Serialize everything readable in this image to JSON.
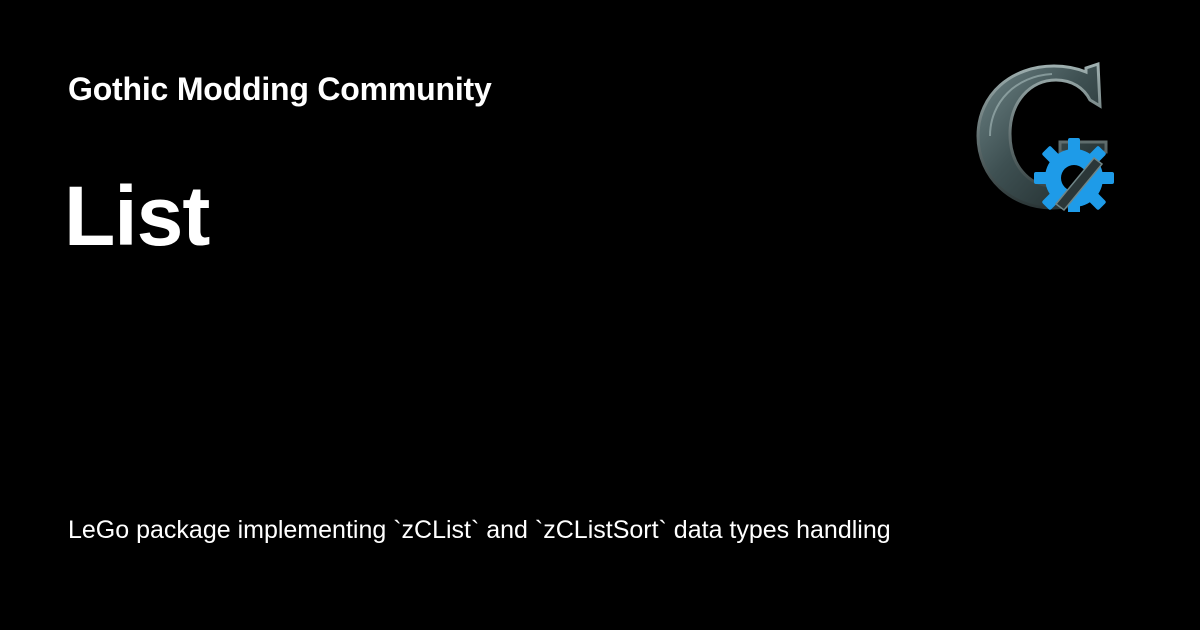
{
  "header": {
    "site_name": "Gothic Modding Community"
  },
  "page": {
    "title": "List",
    "description": "LeGo package implementing `zCList` and `zCListSort` data types handling"
  },
  "logo": {
    "icon": "gothic-g-gear-logo-icon",
    "accent_color": "#1e9be8",
    "stone_color": "#3e5052"
  },
  "colors": {
    "background": "#000000",
    "text": "#ffffff"
  }
}
